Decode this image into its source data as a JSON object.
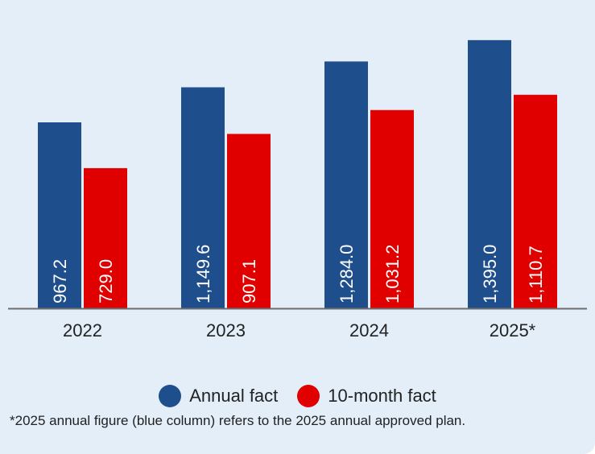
{
  "chart_data": {
    "type": "bar",
    "categories": [
      "2022",
      "2023",
      "2024",
      "2025*"
    ],
    "series": [
      {
        "name": "Annual fact",
        "color": "#1f4e8c",
        "values": [
          967.2,
          1149.6,
          1284.0,
          1395.0
        ],
        "labels": [
          "967.2",
          "1,149.6",
          "1,284.0",
          "1,395.0"
        ]
      },
      {
        "name": "10-month fact",
        "color": "#e00000",
        "values": [
          729.0,
          907.1,
          1031.2,
          1110.7
        ],
        "labels": [
          "729.0",
          "907.1",
          "1,031.2",
          "1,110.7"
        ]
      }
    ],
    "ylim": [
      0,
      1520
    ],
    "grid": false,
    "legend_position": "bottom"
  },
  "footnote": "*2025 annual figure (blue column) refers to the 2025 annual approved plan."
}
